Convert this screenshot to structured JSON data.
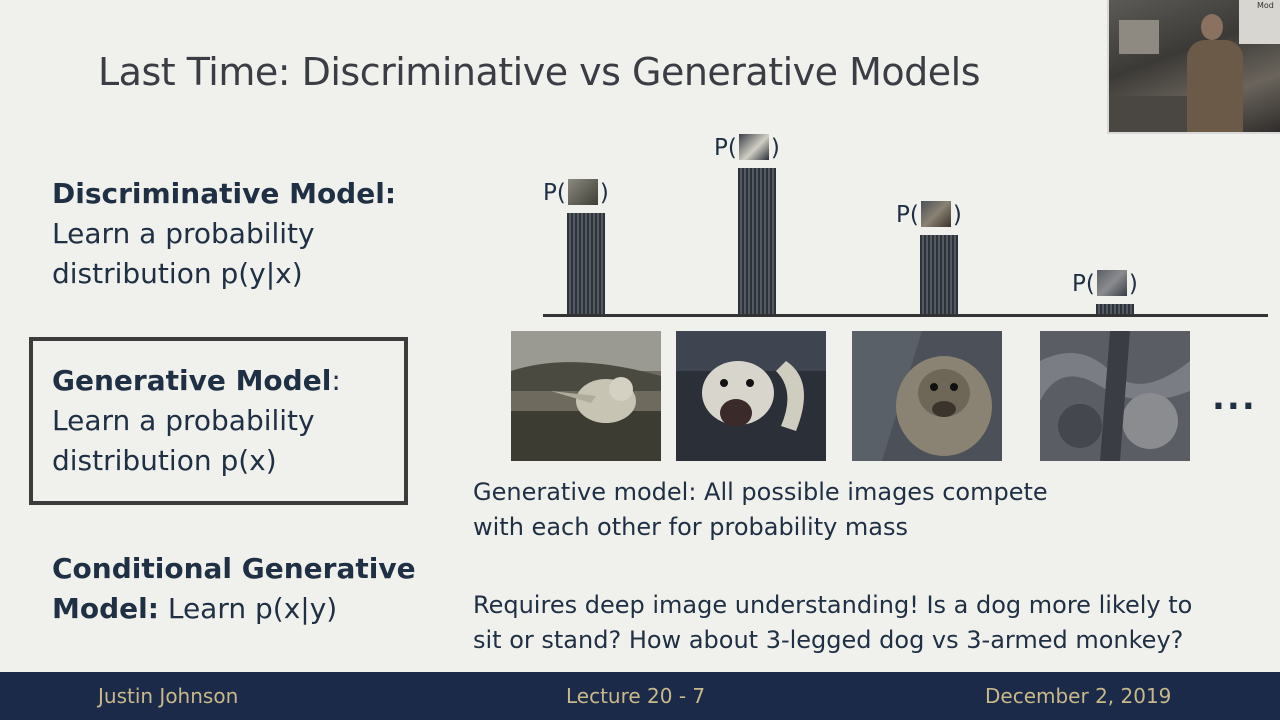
{
  "slide": {
    "title": "Last Time: Discriminative vs Generative Models"
  },
  "video_overlay": {
    "screen_text": "Mod"
  },
  "left": {
    "discriminative": {
      "bold": "Discriminative Model:",
      "line1": "Learn a probability",
      "line2": "distribution p(y|x)"
    },
    "generative": {
      "bold": "Generative Model",
      "colon": ":",
      "line1": "Learn a probability",
      "line2": "distribution p(x)"
    },
    "conditional": {
      "bold1": "Conditional Generative",
      "bold2": "Model:",
      "rest": " Learn p(x|y)"
    }
  },
  "chart_data": {
    "type": "bar",
    "categories": [
      "cat image",
      "dog image",
      "monkey image",
      "abstract image"
    ],
    "values": [
      0.69,
      1.0,
      0.54,
      0.07
    ],
    "ylim": [
      0,
      1
    ],
    "grid": false,
    "bar_labels": [
      {
        "prefix": "P(",
        "suffix": ")"
      },
      {
        "prefix": "P(",
        "suffix": ")"
      },
      {
        "prefix": "P(",
        "suffix": ")"
      },
      {
        "prefix": "P(",
        "suffix": ")"
      }
    ]
  },
  "images": {
    "ellipsis": "..."
  },
  "captions": {
    "generative_line1": "Generative model: All possible images compete",
    "generative_line2": "with each other for probability mass",
    "requires_line1": "Requires deep image understanding! Is a dog more likely to",
    "requires_line2": "sit or stand? How about 3-legged dog vs 3-armed monkey?"
  },
  "footer": {
    "author": "Justin Johnson",
    "lecture": "Lecture 20 - 7",
    "date": "December 2, 2019"
  },
  "colors": {
    "text": "#1f2f44",
    "footer_bg": "#1c2a4a",
    "footer_text": "#c8b88a",
    "bar": "#3a3f46"
  }
}
